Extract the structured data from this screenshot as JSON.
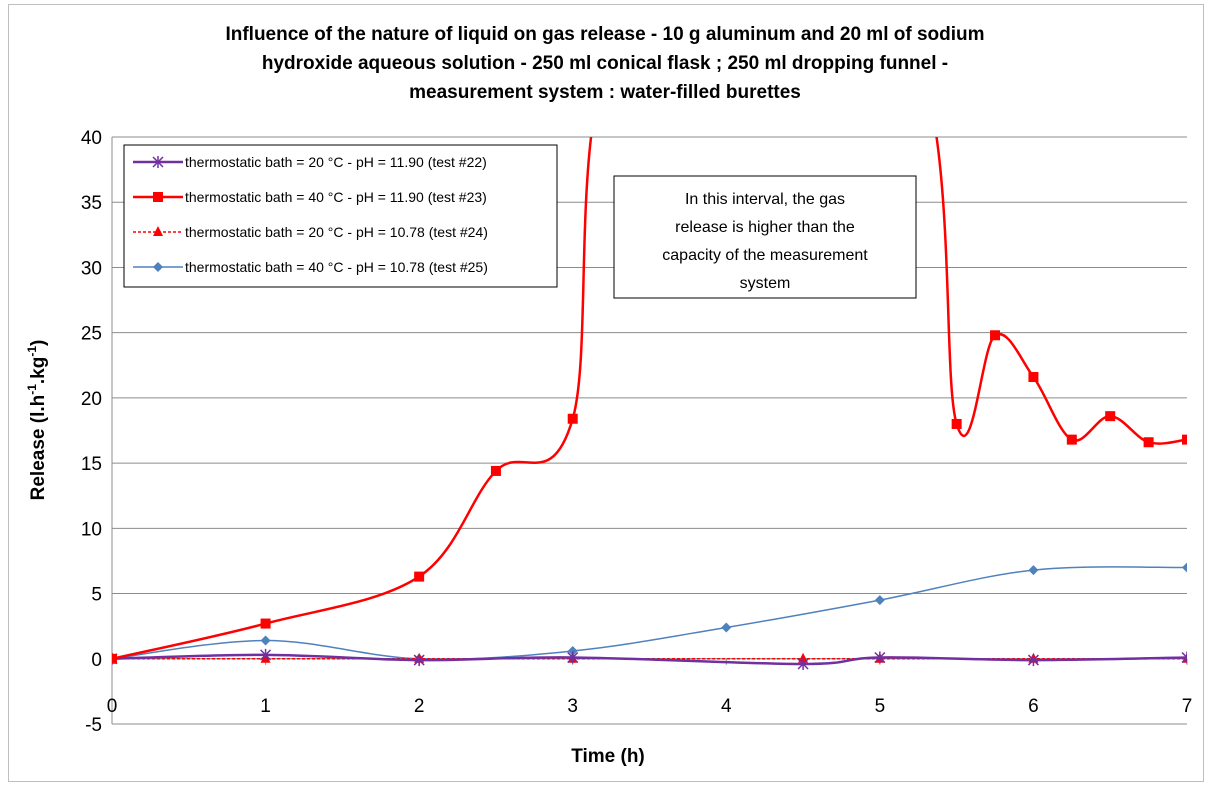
{
  "chart_data": {
    "type": "line",
    "title_lines": [
      "Influence of the nature of liquid on gas release - 10 g aluminum and 20 ml of sodium",
      "hydroxide aqueous solution - 250 ml conical flask ; 250 ml dropping funnel -",
      "measurement system : water-filled burettes"
    ],
    "xlabel": "Time (h)",
    "ylabel_parts": [
      "Release (l.h",
      "-1",
      ".kg",
      "-1",
      ")"
    ],
    "xlim": [
      0,
      7
    ],
    "ylim": [
      -5,
      40
    ],
    "x_ticks": [
      "0",
      "1",
      "2",
      "3",
      "4",
      "5",
      "6",
      "7"
    ],
    "y_ticks": [
      "-5",
      "0",
      "5",
      "10",
      "15",
      "20",
      "25",
      "30",
      "35",
      "40"
    ],
    "grid": "horizontal",
    "legend_position": "top-left",
    "annotation": [
      "In this interval, the gas",
      "release is higher than the",
      "capacity of the measurement",
      "system"
    ],
    "series": [
      {
        "name": "thermostatic bath = 20 °C - pH = 11.90 (test #22)",
        "color": "#7030a0",
        "marker": "asterisk",
        "dashed": false,
        "x": [
          0,
          1,
          2,
          3,
          4.5,
          5,
          6,
          7
        ],
        "y": [
          0,
          0.3,
          -0.1,
          0.1,
          -0.4,
          0.1,
          -0.1,
          0.1
        ]
      },
      {
        "name": "thermostatic bath = 40 °C - pH = 11.90 (test #23)",
        "color": "#ff0000",
        "marker": "square",
        "dashed": false,
        "x": [
          0,
          1,
          2,
          2.5,
          3,
          5.5,
          5.75,
          6,
          6.25,
          6.5,
          6.75,
          7
        ],
        "y": [
          0,
          2.7,
          6.3,
          14.4,
          18.4,
          18.0,
          24.8,
          21.6,
          16.8,
          18.6,
          16.6,
          16.8
        ],
        "off_scale_interval": [
          3,
          5.5
        ]
      },
      {
        "name": "thermostatic bath = 20 °C - pH = 10.78 (test #24)",
        "color": "#ff0000",
        "marker": "triangle",
        "dashed": true,
        "x": [
          0,
          1,
          2,
          3,
          4.5,
          5,
          6,
          7
        ],
        "y": [
          0,
          0,
          0,
          0,
          0,
          0,
          0,
          0
        ]
      },
      {
        "name": "thermostatic bath = 40 °C - pH = 10.78 (test #25)",
        "color": "#4f81bd",
        "marker": "diamond",
        "dashed": false,
        "x": [
          0,
          1,
          2,
          3,
          4,
          5,
          6,
          7
        ],
        "y": [
          0,
          1.4,
          0,
          0.6,
          2.4,
          4.5,
          6.8,
          7.0
        ]
      }
    ]
  }
}
